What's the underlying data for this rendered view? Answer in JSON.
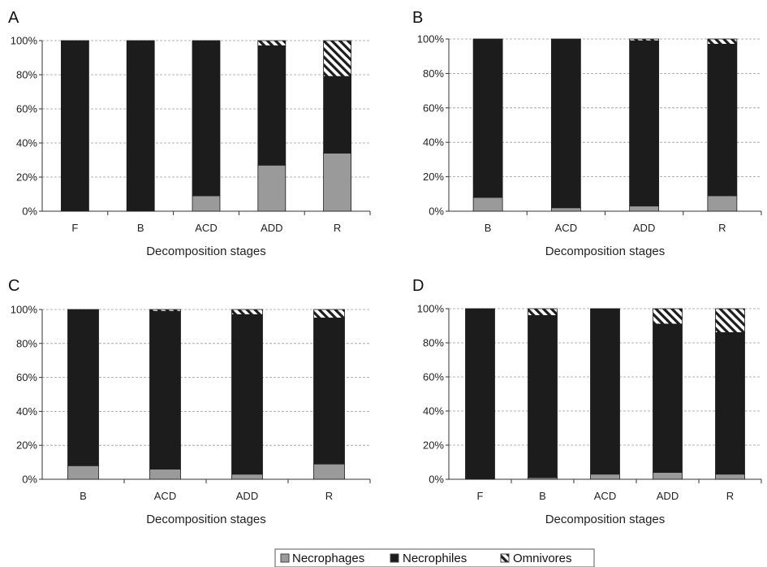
{
  "colors": {
    "necrophages": "#9a9a9a",
    "necrophiles": "#1c1c1c",
    "omnivores": "hatched",
    "gridline": "#9a9a9a"
  },
  "legend": {
    "placement": "bottom-center",
    "entries": [
      "Necrophages",
      "Necrophiles",
      "Omnivores"
    ]
  },
  "chart_data": [
    {
      "panel": "A",
      "type": "bar",
      "stacked": true,
      "categories": [
        "F",
        "B",
        "ACD",
        "ADD",
        "R"
      ],
      "xlabel": "Decomposition stages",
      "ylabel": "",
      "ylim": [
        0,
        100
      ],
      "yticks": [
        "0%",
        "20%",
        "40%",
        "60%",
        "80%",
        "100%"
      ],
      "grid": true,
      "series": [
        {
          "name": "Necrophages",
          "values": [
            0,
            0,
            9,
            27,
            34
          ]
        },
        {
          "name": "Necrophiles",
          "values": [
            100,
            100,
            91,
            70,
            45
          ]
        },
        {
          "name": "Omnivores",
          "values": [
            0,
            0,
            0,
            3,
            21
          ]
        }
      ]
    },
    {
      "panel": "B",
      "type": "bar",
      "stacked": true,
      "categories": [
        "B",
        "ACD",
        "ADD",
        "R"
      ],
      "xlabel": "Decomposition stages",
      "ylabel": "",
      "ylim": [
        0,
        100
      ],
      "yticks": [
        "0%",
        "20%",
        "40%",
        "60%",
        "80%",
        "100%"
      ],
      "grid": true,
      "series": [
        {
          "name": "Necrophages",
          "values": [
            8,
            2,
            3,
            9
          ]
        },
        {
          "name": "Necrophiles",
          "values": [
            92,
            98,
            96,
            88
          ]
        },
        {
          "name": "Omnivores",
          "values": [
            0,
            0,
            1,
            3
          ]
        }
      ]
    },
    {
      "panel": "C",
      "type": "bar",
      "stacked": true,
      "categories": [
        "B",
        "ACD",
        "ADD",
        "R"
      ],
      "xlabel": "Decomposition stages",
      "ylabel": "",
      "ylim": [
        0,
        100
      ],
      "yticks": [
        "0%",
        "20%",
        "40%",
        "60%",
        "80%",
        "100%"
      ],
      "grid": true,
      "series": [
        {
          "name": "Necrophages",
          "values": [
            8,
            6,
            3,
            9
          ]
        },
        {
          "name": "Necrophiles",
          "values": [
            92,
            93,
            94,
            86
          ]
        },
        {
          "name": "Omnivores",
          "values": [
            0,
            1,
            3,
            5
          ]
        }
      ]
    },
    {
      "panel": "D",
      "type": "bar",
      "stacked": true,
      "categories": [
        "F",
        "B",
        "ACD",
        "ADD",
        "R"
      ],
      "xlabel": "Decomposition stages",
      "ylabel": "",
      "ylim": [
        0,
        100
      ],
      "yticks": [
        "0%",
        "20%",
        "40%",
        "60%",
        "80%",
        "100%"
      ],
      "grid": true,
      "series": [
        {
          "name": "Necrophages",
          "values": [
            0,
            1,
            3,
            4,
            3
          ]
        },
        {
          "name": "Necrophiles",
          "values": [
            100,
            95,
            97,
            87,
            83
          ]
        },
        {
          "name": "Omnivores",
          "values": [
            0,
            4,
            0,
            9,
            14
          ]
        }
      ]
    }
  ]
}
